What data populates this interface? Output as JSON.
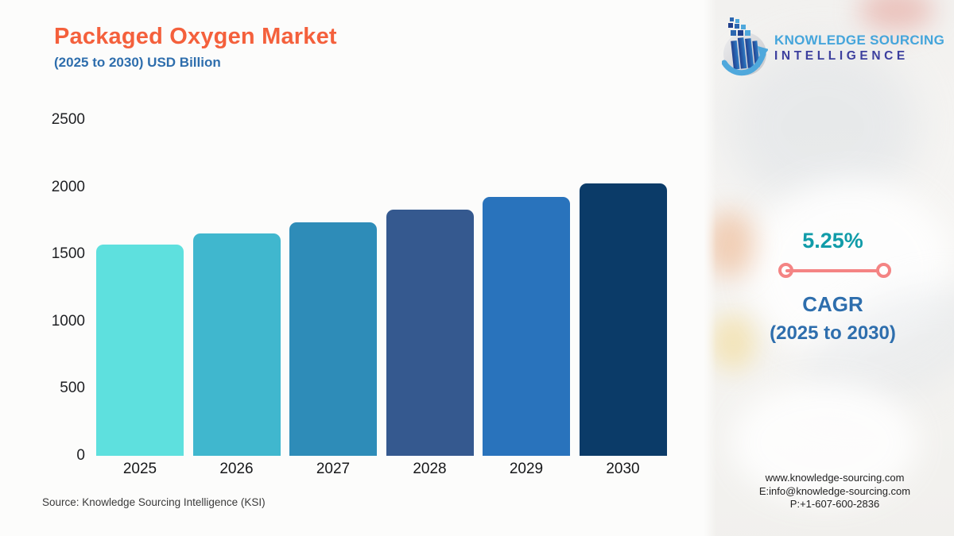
{
  "header": {
    "title": "Packaged Oxygen Market",
    "subtitle": "(2025 to 2030) USD Billion",
    "title_color": "#F4603C",
    "subtitle_color": "#2E6EAD"
  },
  "logo": {
    "line1": "KNOWLEDGE SOURCING",
    "line2": "INTELLIGENCE",
    "line1_color": "#45A5DB",
    "line2_color": "#3C3F9E",
    "icon": "bar-chart-globe-arrow-logo"
  },
  "chart_data": {
    "type": "bar",
    "title": "Packaged Oxygen Market (2025 to 2030) USD Billion",
    "categories": [
      "2025",
      "2026",
      "2027",
      "2028",
      "2029",
      "2030"
    ],
    "values": [
      1571,
      1653,
      1740,
      1832,
      1928,
      2029
    ],
    "xlabel": "",
    "ylabel": "USD Billion",
    "ylim": [
      0,
      2500
    ],
    "yticks": [
      0,
      500,
      1000,
      1500,
      2000,
      2500
    ],
    "grid": false,
    "legend": false,
    "bar_colors": [
      "#5EE0DE",
      "#40B7CE",
      "#2E8CB8",
      "#35598F",
      "#2973BC",
      "#0B3B68"
    ]
  },
  "cagr": {
    "value": "5.25%",
    "label": "CAGR",
    "period": "(2025 to 2030)",
    "value_color": "#119CA9",
    "label_color": "#2E6EAD",
    "line_color": "#F48484"
  },
  "source": "Source: Knowledge Sourcing Intelligence (KSI)",
  "contact": {
    "website": "www.knowledge-sourcing.com",
    "email": "E:info@knowledge-sourcing.com",
    "phone": "P:+1-607-600-2836"
  }
}
